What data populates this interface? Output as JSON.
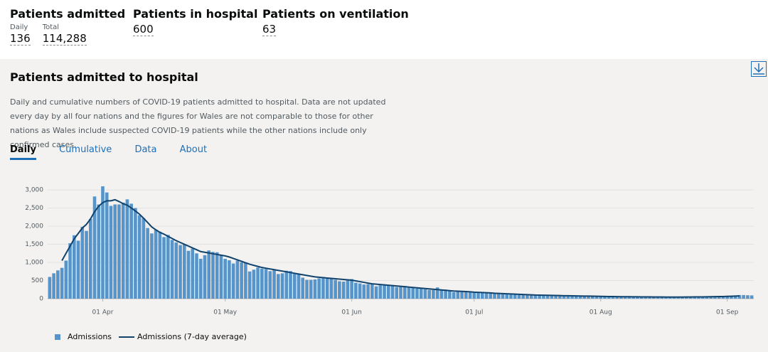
{
  "header": {
    "stats": [
      {
        "title": "Patients admitted",
        "items": [
          {
            "label": "Daily",
            "value": "136"
          },
          {
            "label": "Total",
            "value": "114,288"
          }
        ]
      },
      {
        "title": "Patients in hospital",
        "items": [
          {
            "value": "600"
          }
        ]
      },
      {
        "title": "Patients on ventilation",
        "items": [
          {
            "value": "63"
          }
        ]
      }
    ]
  },
  "card": {
    "title": "Patients admitted to hospital",
    "description": "Daily and cumulative numbers of COVID-19 patients admitted to hospital. Data are not updated every day by all four nations and the figures for Wales are not comparable to those for other nations as Wales include suspected COVID-19 patients while the other nations include only confirmed cases.",
    "tabs": [
      "Daily",
      "Cumulative",
      "Data",
      "About"
    ]
  },
  "chart_data": {
    "type": "bar",
    "categories": [
      null,
      null,
      null,
      null,
      null,
      null,
      null,
      null,
      null,
      null,
      null,
      null,
      null,
      "01 Apr",
      null,
      null,
      null,
      null,
      null,
      null,
      null,
      null,
      null,
      null,
      null,
      null,
      null,
      null,
      null,
      null,
      null,
      null,
      null,
      null,
      null,
      null,
      null,
      null,
      null,
      null,
      null,
      null,
      null,
      "01 May",
      null,
      null,
      null,
      null,
      null,
      null,
      null,
      null,
      null,
      null,
      null,
      null,
      null,
      null,
      null,
      null,
      null,
      null,
      null,
      null,
      null,
      null,
      null,
      null,
      null,
      null,
      null,
      null,
      null,
      null,
      "01 Jun",
      null,
      null,
      null,
      null,
      null,
      null,
      null,
      null,
      null,
      null,
      null,
      null,
      null,
      null,
      null,
      null,
      null,
      null,
      null,
      null,
      null,
      null,
      null,
      null,
      null,
      null,
      null,
      null,
      null,
      "01 Jul",
      null,
      null,
      null,
      null,
      null,
      null,
      null,
      null,
      null,
      null,
      null,
      null,
      null,
      null,
      null,
      null,
      null,
      null,
      null,
      null,
      null,
      null,
      null,
      null,
      null,
      null,
      null,
      null,
      null,
      null,
      "01 Aug",
      null,
      null,
      null,
      null,
      null,
      null,
      null,
      null,
      null,
      null,
      null,
      null,
      null,
      null,
      null,
      null,
      null,
      null,
      null,
      null,
      null,
      null,
      null,
      null,
      null,
      null,
      null,
      null,
      null,
      null,
      "01 Sep",
      null,
      null,
      null,
      null,
      null,
      null
    ],
    "series": [
      {
        "name": "Admissions",
        "type": "bar",
        "color": "#5694ca",
        "values": [
          600,
          700,
          780,
          850,
          1050,
          1530,
          1750,
          1600,
          1980,
          1870,
          2200,
          2820,
          2600,
          3100,
          2930,
          2560,
          2600,
          2600,
          2650,
          2740,
          2620,
          2500,
          2300,
          2220,
          1950,
          1800,
          1900,
          1850,
          1700,
          1760,
          1620,
          1550,
          1480,
          1500,
          1320,
          1380,
          1250,
          1100,
          1200,
          1330,
          1290,
          1280,
          1200,
          1100,
          1060,
          970,
          1050,
          1000,
          1000,
          750,
          800,
          860,
          830,
          820,
          760,
          800,
          680,
          700,
          770,
          760,
          690,
          680,
          580,
          520,
          520,
          530,
          560,
          600,
          570,
          560,
          520,
          480,
          470,
          500,
          540,
          440,
          420,
          390,
          400,
          400,
          340,
          370,
          380,
          370,
          360,
          320,
          340,
          350,
          320,
          300,
          280,
          300,
          260,
          240,
          240,
          310,
          250,
          250,
          220,
          180,
          200,
          210,
          190,
          190,
          180,
          160,
          170,
          150,
          160,
          140,
          130,
          140,
          130,
          120,
          110,
          120,
          110,
          100,
          100,
          110,
          100,
          90,
          90,
          80,
          90,
          85,
          80,
          80,
          75,
          70,
          80,
          70,
          70,
          75,
          65,
          60,
          65,
          60,
          55,
          60,
          55,
          50,
          55,
          50,
          45,
          50,
          50,
          45,
          50,
          45,
          40,
          45,
          40,
          40,
          45,
          40,
          45,
          40,
          45,
          50,
          45,
          50,
          55,
          60,
          65,
          70,
          80,
          85,
          90,
          100,
          100,
          95,
          90
        ]
      },
      {
        "name": "Admissions (7-day average)",
        "type": "line",
        "color": "#12436d",
        "values": [
          null,
          null,
          null,
          1050,
          1250,
          1450,
          1650,
          1800,
          1950,
          2050,
          2200,
          2400,
          2550,
          2650,
          2700,
          2700,
          2730,
          2680,
          2620,
          2580,
          2500,
          2420,
          2330,
          2220,
          2100,
          1980,
          1900,
          1830,
          1780,
          1720,
          1660,
          1600,
          1550,
          1500,
          1450,
          1400,
          1350,
          1300,
          1280,
          1260,
          1240,
          1220,
          1200,
          1180,
          1150,
          1110,
          1070,
          1030,
          990,
          950,
          920,
          890,
          860,
          840,
          820,
          800,
          780,
          760,
          740,
          720,
          700,
          680,
          660,
          640,
          620,
          600,
          590,
          580,
          570,
          560,
          550,
          540,
          530,
          520,
          510,
          490,
          470,
          450,
          430,
          410,
          400,
          390,
          380,
          370,
          360,
          350,
          340,
          330,
          320,
          310,
          300,
          290,
          280,
          270,
          260,
          250,
          240,
          230,
          220,
          210,
          205,
          200,
          195,
          190,
          180,
          175,
          170,
          165,
          160,
          150,
          145,
          140,
          135,
          130,
          125,
          120,
          115,
          110,
          105,
          100,
          98,
          95,
          92,
          90,
          88,
          85,
          82,
          80,
          78,
          76,
          74,
          72,
          70,
          68,
          66,
          64,
          62,
          60,
          58,
          56,
          55,
          54,
          53,
          52,
          51,
          50,
          49,
          48,
          47,
          46,
          46,
          45,
          45,
          45,
          45,
          45,
          46,
          47,
          48,
          49,
          50,
          52,
          54,
          56,
          58,
          60,
          63,
          66,
          70,
          75,
          null,
          null,
          null
        ]
      }
    ],
    "ylim": [
      0,
      3100
    ],
    "yticks": [
      0,
      500,
      {
        "value": 1000,
        "label": "1,000"
      },
      {
        "value": 1500,
        "label": "1,500"
      },
      {
        "value": 2000,
        "label": "2,000"
      },
      {
        "value": 2500,
        "label": "2,500"
      },
      {
        "value": 3000,
        "label": "3,000"
      }
    ],
    "grid": true
  }
}
